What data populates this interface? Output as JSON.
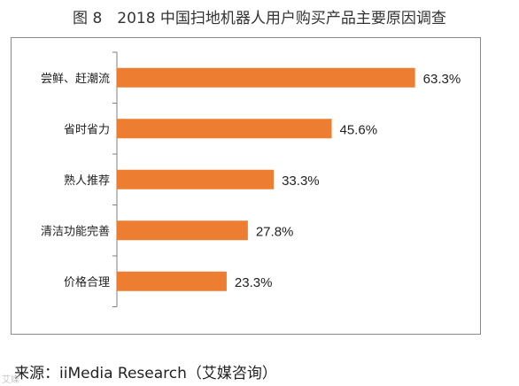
{
  "chart_data": {
    "type": "bar",
    "orientation": "horizontal",
    "title": "图 8　2018 中国扫地机器人用户购买产品主要原因调查",
    "categories": [
      "尝鲜、赶潮流",
      "省时省力",
      "熟人推荐",
      "清洁功能完善",
      "价格合理"
    ],
    "values": [
      63.3,
      45.6,
      33.3,
      27.8,
      23.3
    ],
    "value_labels": [
      "63.3%",
      "45.6%",
      "33.3%",
      "27.8%",
      "23.3%"
    ],
    "unit": "%",
    "xlim": [
      0,
      66
    ],
    "grid": false,
    "legend": "none",
    "bar_color": "#ED7D31",
    "axis_color": "#7f7f7f"
  },
  "source": "来源：iiMedia Research（艾媒咨询）",
  "watermark": "艾媒"
}
